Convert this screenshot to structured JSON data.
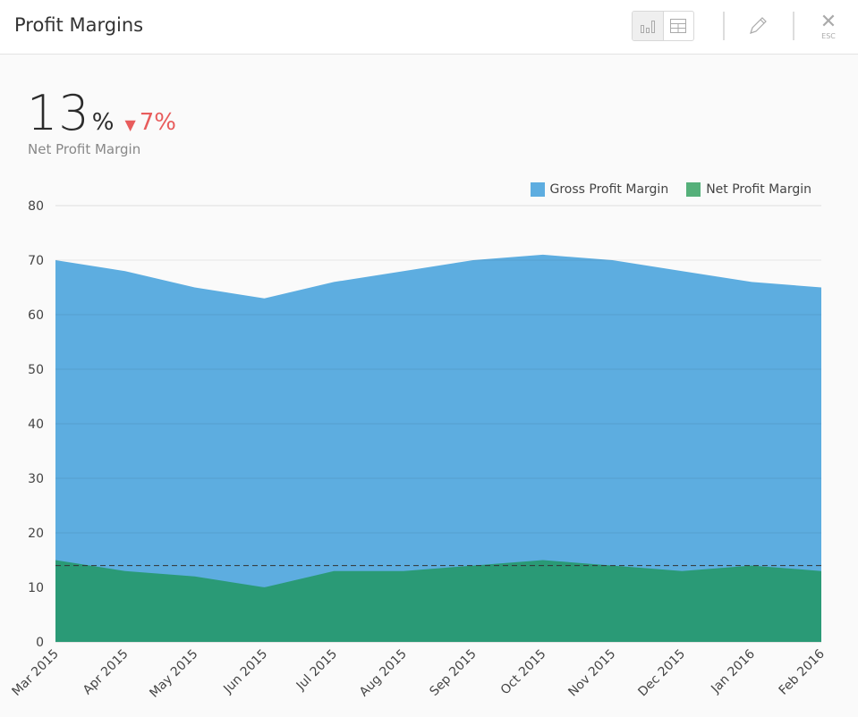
{
  "header": {
    "title": "Profit Margins",
    "esc_label": "ESC",
    "icons": [
      "bar-chart-icon",
      "table-icon",
      "pencil-icon",
      "close-icon"
    ]
  },
  "kpi": {
    "value": "13",
    "unit": "%",
    "delta": "7%",
    "delta_direction": "down",
    "label": "Net Profit Margin",
    "delta_color": "#e85c5c"
  },
  "chart_data": {
    "type": "area",
    "title": "Profit Margins",
    "categories": [
      "Mar 2015",
      "Apr 2015",
      "May 2015",
      "Jun 2015",
      "Jul 2015",
      "Aug 2015",
      "Sep 2015",
      "Oct 2015",
      "Nov 2015",
      "Dec 2015",
      "Jan 2016",
      "Feb 2016"
    ],
    "series": [
      {
        "name": "Gross Profit Margin",
        "color": "#5dade0",
        "values": [
          70,
          68,
          65,
          63,
          66,
          68,
          70,
          71,
          70,
          68,
          66,
          65
        ]
      },
      {
        "name": "Net Profit Margin",
        "color": "#55b07a",
        "fill": "#2a9a76",
        "values": [
          15,
          13,
          12,
          10,
          13,
          13,
          14,
          15,
          14,
          13,
          14,
          13
        ]
      }
    ],
    "reference_line": {
      "value": 14,
      "style": "dashed"
    },
    "ylim": [
      0,
      80
    ],
    "yticks": [
      0,
      10,
      20,
      30,
      40,
      50,
      60,
      70,
      80
    ],
    "grid": true,
    "legend": "top-right",
    "xlabel": "",
    "ylabel": ""
  }
}
